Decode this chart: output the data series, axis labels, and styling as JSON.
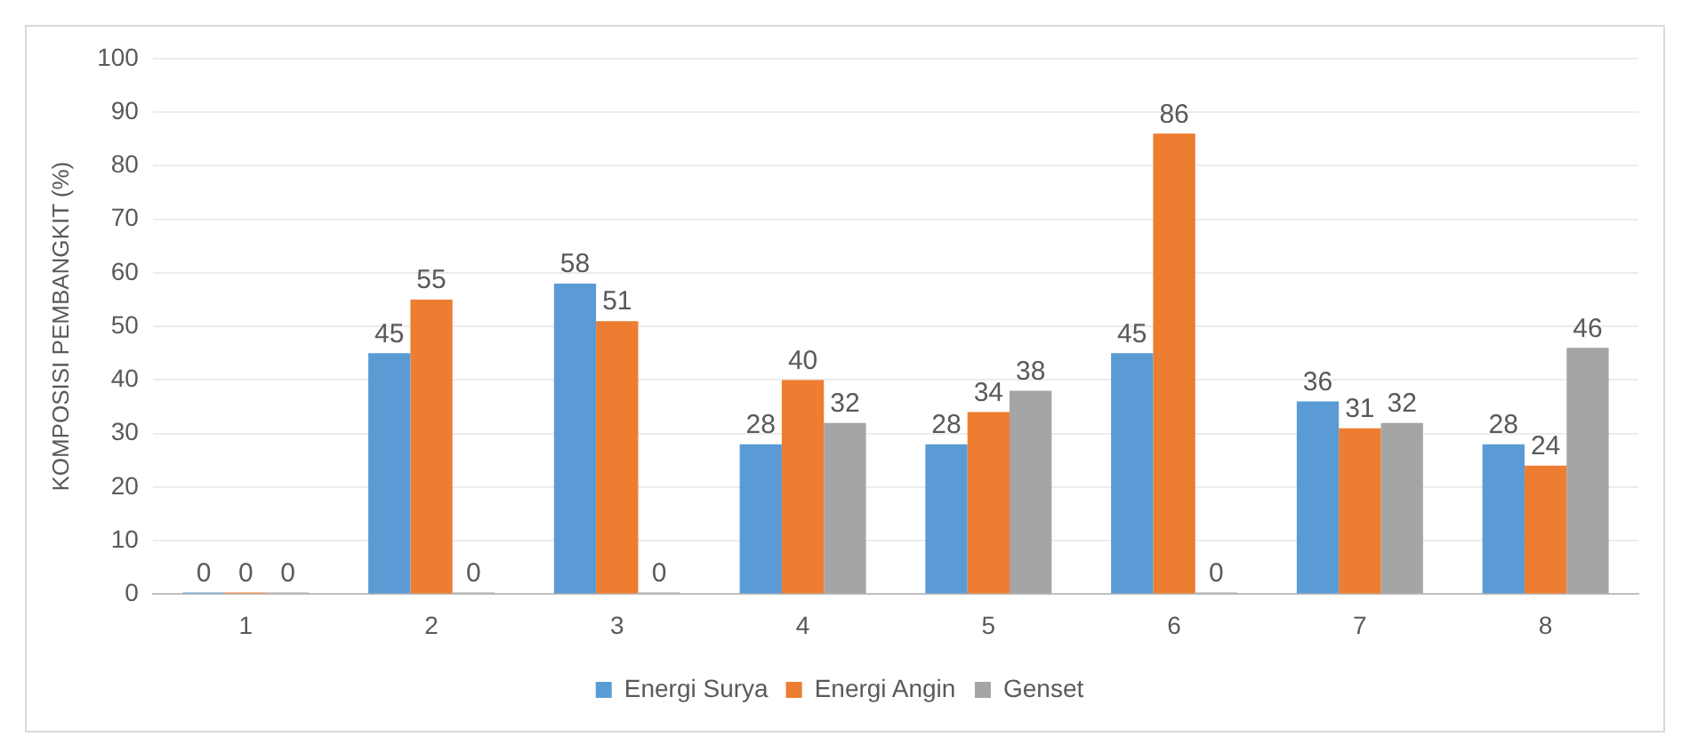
{
  "chart_data": {
    "type": "bar",
    "ylabel": "KOMPOSISI PEMBANGKIT (%)",
    "categories": [
      "1",
      "2",
      "3",
      "4",
      "5",
      "6",
      "7",
      "8"
    ],
    "series": [
      {
        "name": "Energi Surya",
        "color": "#5b9bd5",
        "values": [
          0,
          45,
          58,
          28,
          28,
          45,
          36,
          28
        ]
      },
      {
        "name": "Energi Angin",
        "color": "#ed7d31",
        "values": [
          0,
          55,
          51,
          40,
          34,
          86,
          31,
          24
        ]
      },
      {
        "name": "Genset",
        "color": "#a5a5a5",
        "values": [
          0,
          0,
          0,
          32,
          38,
          0,
          32,
          46
        ]
      }
    ],
    "ylim": [
      0,
      100
    ],
    "yticks": [
      0,
      10,
      20,
      30,
      40,
      50,
      60,
      70,
      80,
      90,
      100
    ],
    "grid": "y",
    "legend": "bottom",
    "data_labels": true
  }
}
